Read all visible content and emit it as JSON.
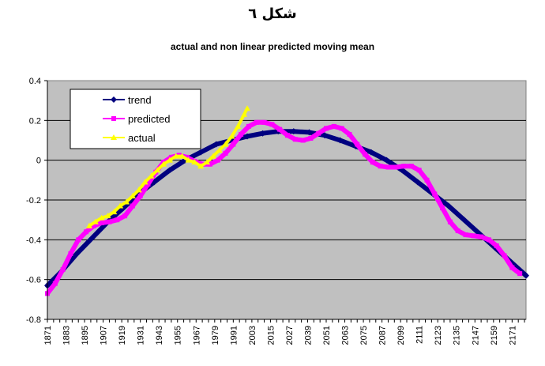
{
  "chart_data": {
    "type": "line",
    "title": "شكل ٦",
    "subtitle": "actual and non linear predicted moving mean",
    "xlabel": "",
    "ylabel": "",
    "xlim": [
      1871,
      2180
    ],
    "ylim": [
      -0.8,
      0.4
    ],
    "x_tick_labels": [
      "1871",
      "1883",
      "1895",
      "1907",
      "1919",
      "1931",
      "1943",
      "1955",
      "1967",
      "1979",
      "1991",
      "2003",
      "2015",
      "2027",
      "2039",
      "2051",
      "2063",
      "2075",
      "2087",
      "2099",
      "2111",
      "2123",
      "2135",
      "2147",
      "2159",
      "2171"
    ],
    "y_tick_labels": [
      "0.4",
      "0.2",
      "0",
      "-0.2",
      "-0.4",
      "-0.6",
      "-0.8"
    ],
    "y_ticks": [
      0.4,
      0.2,
      0,
      -0.2,
      -0.4,
      -0.6,
      -0.8
    ],
    "grid": true,
    "legend_position": "top-left",
    "plot_background": "#c0c0c0",
    "series": [
      {
        "name": "trend",
        "color": "#000080",
        "marker": "diamond",
        "points": [
          [
            1871,
            -0.63
          ],
          [
            1880,
            -0.56
          ],
          [
            1890,
            -0.47
          ],
          [
            1900,
            -0.39
          ],
          [
            1910,
            -0.31
          ],
          [
            1920,
            -0.24
          ],
          [
            1930,
            -0.17
          ],
          [
            1940,
            -0.11
          ],
          [
            1950,
            -0.05
          ],
          [
            1960,
            0.0
          ],
          [
            1970,
            0.04
          ],
          [
            1980,
            0.08
          ],
          [
            1990,
            0.1
          ],
          [
            2000,
            0.12
          ],
          [
            2010,
            0.135
          ],
          [
            2020,
            0.145
          ],
          [
            2030,
            0.145
          ],
          [
            2040,
            0.14
          ],
          [
            2050,
            0.125
          ],
          [
            2060,
            0.1
          ],
          [
            2070,
            0.07
          ],
          [
            2080,
            0.04
          ],
          [
            2090,
            0.0
          ],
          [
            2100,
            -0.05
          ],
          [
            2110,
            -0.11
          ],
          [
            2120,
            -0.17
          ],
          [
            2130,
            -0.23
          ],
          [
            2140,
            -0.3
          ],
          [
            2150,
            -0.37
          ],
          [
            2160,
            -0.44
          ],
          [
            2170,
            -0.51
          ],
          [
            2180,
            -0.58
          ]
        ]
      },
      {
        "name": "predicted",
        "color": "#ff00ff",
        "marker": "square",
        "points": [
          [
            1871,
            -0.67
          ],
          [
            1876,
            -0.62
          ],
          [
            1881,
            -0.55
          ],
          [
            1886,
            -0.47
          ],
          [
            1891,
            -0.4
          ],
          [
            1896,
            -0.36
          ],
          [
            1901,
            -0.33
          ],
          [
            1906,
            -0.315
          ],
          [
            1911,
            -0.31
          ],
          [
            1916,
            -0.3
          ],
          [
            1921,
            -0.28
          ],
          [
            1926,
            -0.23
          ],
          [
            1931,
            -0.18
          ],
          [
            1936,
            -0.12
          ],
          [
            1941,
            -0.06
          ],
          [
            1946,
            -0.01
          ],
          [
            1951,
            0.015
          ],
          [
            1956,
            0.025
          ],
          [
            1961,
            0.015
          ],
          [
            1966,
            -0.005
          ],
          [
            1971,
            -0.02
          ],
          [
            1976,
            -0.02
          ],
          [
            1981,
            0.0
          ],
          [
            1986,
            0.035
          ],
          [
            1991,
            0.08
          ],
          [
            1996,
            0.13
          ],
          [
            2001,
            0.17
          ],
          [
            2006,
            0.19
          ],
          [
            2011,
            0.19
          ],
          [
            2016,
            0.18
          ],
          [
            2021,
            0.155
          ],
          [
            2026,
            0.125
          ],
          [
            2031,
            0.105
          ],
          [
            2036,
            0.1
          ],
          [
            2041,
            0.11
          ],
          [
            2046,
            0.135
          ],
          [
            2051,
            0.16
          ],
          [
            2056,
            0.17
          ],
          [
            2061,
            0.16
          ],
          [
            2066,
            0.13
          ],
          [
            2071,
            0.08
          ],
          [
            2076,
            0.03
          ],
          [
            2081,
            -0.01
          ],
          [
            2086,
            -0.03
          ],
          [
            2091,
            -0.035
          ],
          [
            2096,
            -0.035
          ],
          [
            2101,
            -0.03
          ],
          [
            2106,
            -0.03
          ],
          [
            2111,
            -0.05
          ],
          [
            2116,
            -0.1
          ],
          [
            2121,
            -0.17
          ],
          [
            2126,
            -0.24
          ],
          [
            2131,
            -0.31
          ],
          [
            2136,
            -0.355
          ],
          [
            2141,
            -0.375
          ],
          [
            2146,
            -0.38
          ],
          [
            2151,
            -0.385
          ],
          [
            2156,
            -0.4
          ],
          [
            2161,
            -0.43
          ],
          [
            2166,
            -0.48
          ],
          [
            2171,
            -0.54
          ],
          [
            2176,
            -0.57
          ]
        ]
      },
      {
        "name": "actual",
        "color": "#ffff00",
        "marker": "triangle",
        "points": [
          [
            1898,
            -0.33
          ],
          [
            1902,
            -0.31
          ],
          [
            1906,
            -0.29
          ],
          [
            1910,
            -0.28
          ],
          [
            1914,
            -0.26
          ],
          [
            1918,
            -0.23
          ],
          [
            1922,
            -0.21
          ],
          [
            1926,
            -0.18
          ],
          [
            1930,
            -0.15
          ],
          [
            1934,
            -0.11
          ],
          [
            1938,
            -0.08
          ],
          [
            1942,
            -0.05
          ],
          [
            1946,
            -0.02
          ],
          [
            1950,
            0.0
          ],
          [
            1954,
            0.02
          ],
          [
            1958,
            0.02
          ],
          [
            1962,
            0.0
          ],
          [
            1966,
            -0.01
          ],
          [
            1970,
            -0.03
          ],
          [
            1974,
            -0.01
          ],
          [
            1978,
            0.02
          ],
          [
            1982,
            0.05
          ],
          [
            1986,
            0.08
          ],
          [
            1990,
            0.12
          ],
          [
            1994,
            0.17
          ],
          [
            1998,
            0.23
          ],
          [
            2000,
            0.26
          ]
        ]
      }
    ]
  }
}
